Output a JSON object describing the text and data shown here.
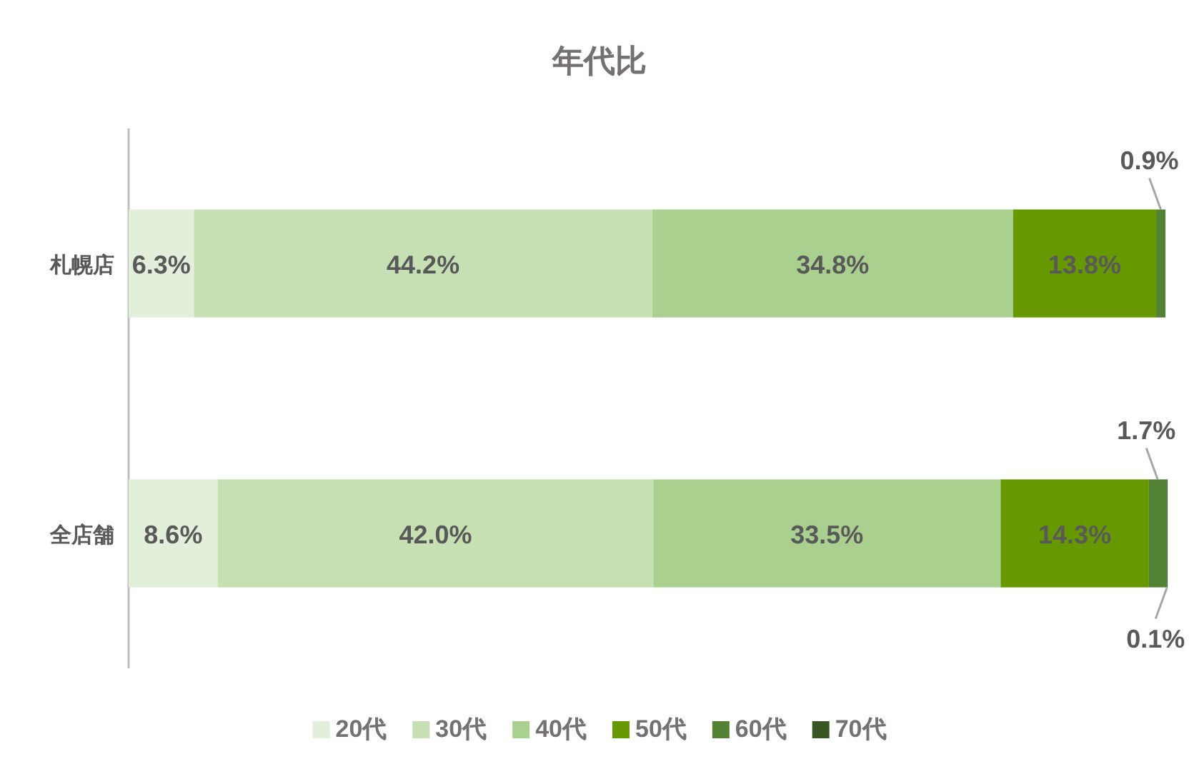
{
  "chart_data": {
    "type": "bar",
    "orientation": "horizontal",
    "stacked": true,
    "title": "年代比",
    "categories": [
      "札幌店",
      "全店舗"
    ],
    "legend": "bottom",
    "series": [
      {
        "name": "20代",
        "color": "#e2efda",
        "values": [
          6.3,
          8.6
        ],
        "value_labels": [
          "6.3%",
          "8.6%"
        ]
      },
      {
        "name": "30代",
        "color": "#c6e0b4",
        "values": [
          44.2,
          42.0
        ],
        "value_labels": [
          "44.2%",
          "42.0%"
        ]
      },
      {
        "name": "40代",
        "color": "#a9d08e",
        "values": [
          34.8,
          33.5
        ],
        "value_labels": [
          "34.8%",
          "33.5%"
        ]
      },
      {
        "name": "50代",
        "color": "#669900",
        "values": [
          13.8,
          14.3
        ],
        "value_labels": [
          "13.8%",
          "14.3%"
        ]
      },
      {
        "name": "60代",
        "color": "#548235",
        "values": [
          0.9,
          1.7
        ],
        "value_labels": [
          "0.9%",
          "1.7%"
        ]
      },
      {
        "name": "70代",
        "color": "#375623",
        "values": [
          null,
          0.1
        ],
        "value_labels": [
          null,
          "0.1%"
        ]
      }
    ]
  }
}
